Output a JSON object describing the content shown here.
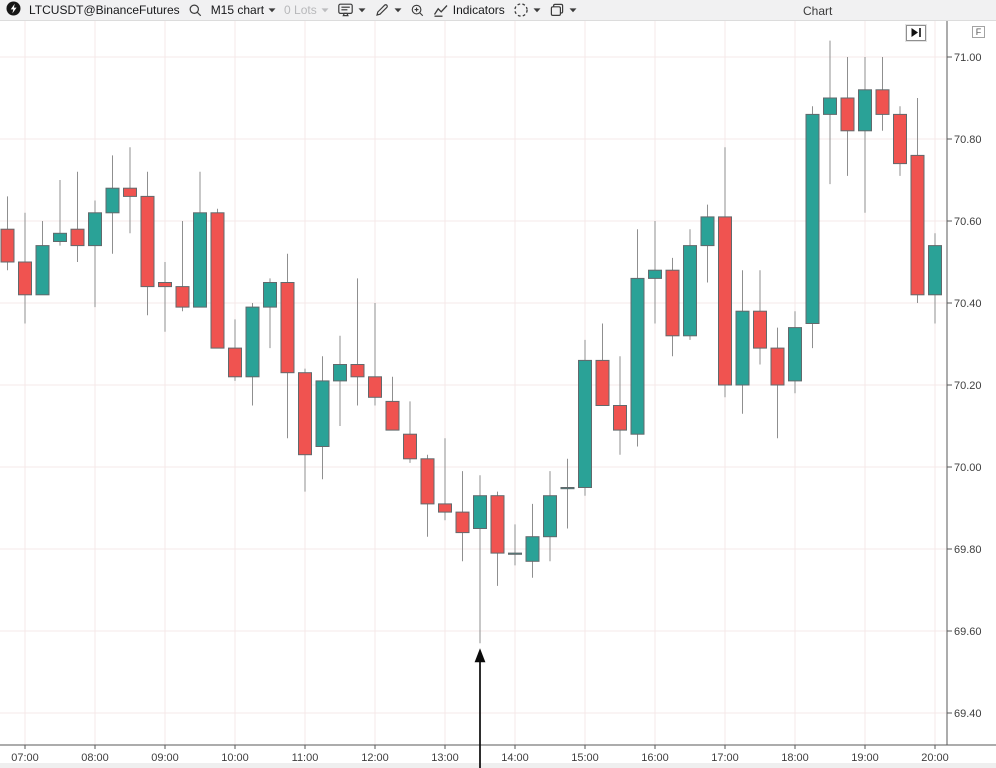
{
  "toolbar": {
    "symbol": "LTCUSDT@BinanceFutures",
    "timeframe_label": "M15 chart",
    "lots_label": "0 Lots",
    "indicators_label": "Indicators",
    "panel_title": "Chart"
  },
  "price_axis": {
    "ticks": [
      "71.00",
      "70.80",
      "70.60",
      "70.40",
      "70.20",
      "70.00",
      "69.80",
      "69.60",
      "69.40"
    ],
    "fit_button_label": "F"
  },
  "time_axis": {
    "ticks": [
      "07:00",
      "08:00",
      "09:00",
      "10:00",
      "11:00",
      "12:00",
      "13:00",
      "14:00",
      "15:00",
      "16:00",
      "17:00",
      "18:00",
      "19:00",
      "20:00"
    ]
  },
  "chart_data": {
    "type": "candlestick",
    "symbol": "LTCUSDT@BinanceFutures",
    "timeframe": "M15",
    "ylim": [
      69.32,
      71.08
    ],
    "grid": true,
    "up_color": "#2aa297",
    "down_color": "#f05350",
    "wick_color": "#8f8f8f",
    "body_outline_color": "#62696c",
    "grid_color": "#f5e9e9",
    "candles": [
      {
        "t": "06:45",
        "o": 70.58,
        "h": 70.66,
        "l": 70.48,
        "c": 70.5
      },
      {
        "t": "07:00",
        "o": 70.5,
        "h": 70.62,
        "l": 70.35,
        "c": 70.42
      },
      {
        "t": "07:15",
        "o": 70.42,
        "h": 70.6,
        "l": 70.42,
        "c": 70.54
      },
      {
        "t": "07:30",
        "o": 70.55,
        "h": 70.7,
        "l": 70.54,
        "c": 70.57
      },
      {
        "t": "07:45",
        "o": 70.58,
        "h": 70.72,
        "l": 70.5,
        "c": 70.54
      },
      {
        "t": "08:00",
        "o": 70.54,
        "h": 70.65,
        "l": 70.39,
        "c": 70.62
      },
      {
        "t": "08:15",
        "o": 70.62,
        "h": 70.76,
        "l": 70.52,
        "c": 70.68
      },
      {
        "t": "08:30",
        "o": 70.68,
        "h": 70.78,
        "l": 70.57,
        "c": 70.66
      },
      {
        "t": "08:45",
        "o": 70.66,
        "h": 70.72,
        "l": 70.37,
        "c": 70.44
      },
      {
        "t": "09:00",
        "o": 70.45,
        "h": 70.5,
        "l": 70.33,
        "c": 70.44
      },
      {
        "t": "09:15",
        "o": 70.44,
        "h": 70.6,
        "l": 70.38,
        "c": 70.39
      },
      {
        "t": "09:30",
        "o": 70.39,
        "h": 70.72,
        "l": 70.39,
        "c": 70.62
      },
      {
        "t": "09:45",
        "o": 70.62,
        "h": 70.63,
        "l": 70.29,
        "c": 70.29
      },
      {
        "t": "10:00",
        "o": 70.29,
        "h": 70.36,
        "l": 70.21,
        "c": 70.22
      },
      {
        "t": "10:15",
        "o": 70.22,
        "h": 70.4,
        "l": 70.15,
        "c": 70.39
      },
      {
        "t": "10:30",
        "o": 70.39,
        "h": 70.46,
        "l": 70.29,
        "c": 70.45
      },
      {
        "t": "10:45",
        "o": 70.45,
        "h": 70.52,
        "l": 70.07,
        "c": 70.23
      },
      {
        "t": "11:00",
        "o": 70.23,
        "h": 70.24,
        "l": 69.94,
        "c": 70.03
      },
      {
        "t": "11:15",
        "o": 70.05,
        "h": 70.27,
        "l": 69.97,
        "c": 70.21
      },
      {
        "t": "11:30",
        "o": 70.21,
        "h": 70.32,
        "l": 70.1,
        "c": 70.25
      },
      {
        "t": "11:45",
        "o": 70.25,
        "h": 70.46,
        "l": 70.15,
        "c": 70.22
      },
      {
        "t": "12:00",
        "o": 70.22,
        "h": 70.4,
        "l": 70.15,
        "c": 70.17
      },
      {
        "t": "12:15",
        "o": 70.16,
        "h": 70.22,
        "l": 70.09,
        "c": 70.09
      },
      {
        "t": "12:30",
        "o": 70.08,
        "h": 70.16,
        "l": 70.01,
        "c": 70.02
      },
      {
        "t": "12:45",
        "o": 70.02,
        "h": 70.03,
        "l": 69.83,
        "c": 69.91
      },
      {
        "t": "13:00",
        "o": 69.91,
        "h": 70.07,
        "l": 69.87,
        "c": 69.89
      },
      {
        "t": "13:15",
        "o": 69.89,
        "h": 69.99,
        "l": 69.77,
        "c": 69.84
      },
      {
        "t": "13:30",
        "o": 69.85,
        "h": 69.98,
        "l": 69.57,
        "c": 69.93
      },
      {
        "t": "13:45",
        "o": 69.93,
        "h": 69.94,
        "l": 69.71,
        "c": 69.79
      },
      {
        "t": "14:00",
        "o": 69.79,
        "h": 69.86,
        "l": 69.76,
        "c": 69.79
      },
      {
        "t": "14:15",
        "o": 69.77,
        "h": 69.91,
        "l": 69.73,
        "c": 69.83
      },
      {
        "t": "14:30",
        "o": 69.83,
        "h": 69.99,
        "l": 69.77,
        "c": 69.93
      },
      {
        "t": "14:45",
        "o": 69.95,
        "h": 70.02,
        "l": 69.85,
        "c": 69.95
      },
      {
        "t": "15:00",
        "o": 69.95,
        "h": 70.31,
        "l": 69.93,
        "c": 70.26
      },
      {
        "t": "15:15",
        "o": 70.26,
        "h": 70.35,
        "l": 70.15,
        "c": 70.15
      },
      {
        "t": "15:30",
        "o": 70.15,
        "h": 70.27,
        "l": 70.03,
        "c": 70.09
      },
      {
        "t": "15:45",
        "o": 70.08,
        "h": 70.58,
        "l": 70.05,
        "c": 70.46
      },
      {
        "t": "16:00",
        "o": 70.46,
        "h": 70.6,
        "l": 70.35,
        "c": 70.48
      },
      {
        "t": "16:15",
        "o": 70.48,
        "h": 70.51,
        "l": 70.27,
        "c": 70.32
      },
      {
        "t": "16:30",
        "o": 70.32,
        "h": 70.58,
        "l": 70.31,
        "c": 70.54
      },
      {
        "t": "16:45",
        "o": 70.54,
        "h": 70.64,
        "l": 70.45,
        "c": 70.61
      },
      {
        "t": "17:00",
        "o": 70.61,
        "h": 70.78,
        "l": 70.17,
        "c": 70.2
      },
      {
        "t": "17:15",
        "o": 70.2,
        "h": 70.48,
        "l": 70.13,
        "c": 70.38
      },
      {
        "t": "17:30",
        "o": 70.38,
        "h": 70.48,
        "l": 70.25,
        "c": 70.29
      },
      {
        "t": "17:45",
        "o": 70.29,
        "h": 70.34,
        "l": 70.07,
        "c": 70.2
      },
      {
        "t": "18:00",
        "o": 70.21,
        "h": 70.38,
        "l": 70.18,
        "c": 70.34
      },
      {
        "t": "18:15",
        "o": 70.35,
        "h": 70.88,
        "l": 70.29,
        "c": 70.86
      },
      {
        "t": "18:30",
        "o": 70.86,
        "h": 71.04,
        "l": 70.69,
        "c": 70.9
      },
      {
        "t": "18:45",
        "o": 70.9,
        "h": 71.0,
        "l": 70.71,
        "c": 70.82
      },
      {
        "t": "19:00",
        "o": 70.82,
        "h": 71.0,
        "l": 70.62,
        "c": 70.92
      },
      {
        "t": "19:15",
        "o": 70.92,
        "h": 71.0,
        "l": 70.82,
        "c": 70.86
      },
      {
        "t": "19:30",
        "o": 70.86,
        "h": 70.88,
        "l": 70.71,
        "c": 70.74
      },
      {
        "t": "19:45",
        "o": 70.76,
        "h": 70.9,
        "l": 70.4,
        "c": 70.42
      },
      {
        "t": "20:00",
        "o": 70.42,
        "h": 70.57,
        "l": 70.35,
        "c": 70.54
      }
    ],
    "annotation": {
      "type": "arrow-up",
      "t": "13:30",
      "price": 69.57,
      "color": "#0a0a0a"
    }
  }
}
